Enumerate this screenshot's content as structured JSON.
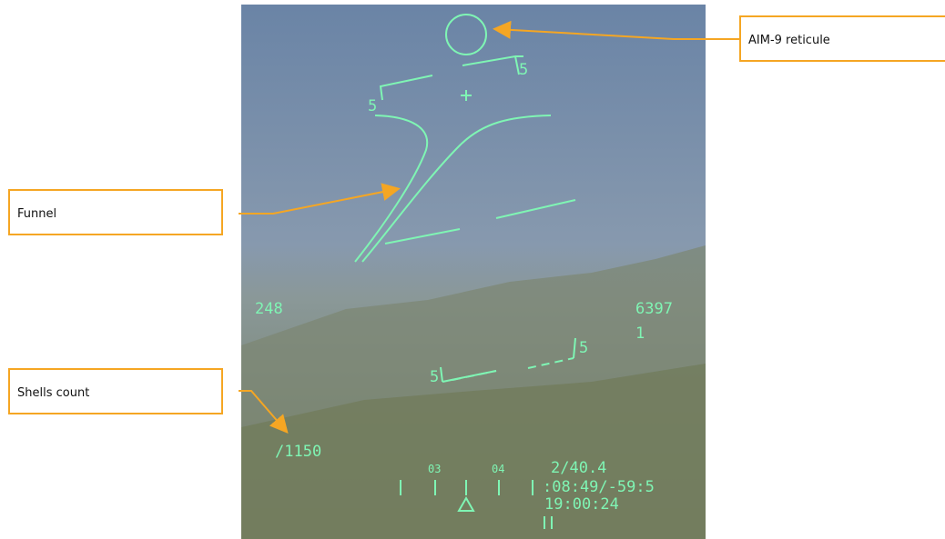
{
  "callouts": [
    {
      "label": "AIM-9 reticule"
    },
    {
      "label": "Funnel"
    },
    {
      "label": "Shells count"
    }
  ],
  "hud": {
    "airspeed": "248",
    "altitude": "6397",
    "altitude_sub": "1",
    "shells": "/1150",
    "heading_marks": [
      "03",
      "04"
    ],
    "info_lines": [
      "2/40.4",
      ":08:49/-59:5",
      "19:00:24"
    ],
    "pitch_labels": [
      "5",
      "5",
      "5",
      "5"
    ]
  }
}
